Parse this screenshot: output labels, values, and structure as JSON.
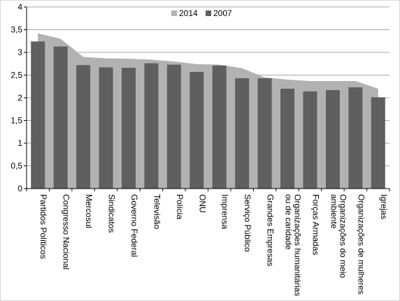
{
  "chart_data": {
    "type": "bar",
    "categories": [
      "Partidos Políticos",
      "Congresso Nacional",
      "Mercosul",
      "Sindicatos",
      "Governo Federal",
      "Televisão",
      "Polícia",
      "ONU",
      "Imprensa",
      "Serviço Público",
      "Grandes Empresas",
      "Organizações humanitárias ou de caridade",
      "Forças Armadas",
      "Organizações do meio ambiente",
      "Organizações de mulheres",
      "Igrejas"
    ],
    "category_lines": [
      [
        "Partidos Políticos"
      ],
      [
        "Congresso Nacional"
      ],
      [
        "Mercosul"
      ],
      [
        "Sindicatos"
      ],
      [
        "Governo Federal"
      ],
      [
        "Televisão"
      ],
      [
        "Polícia"
      ],
      [
        "ONU"
      ],
      [
        "Imprensa"
      ],
      [
        "Serviço Público"
      ],
      [
        "Grandes Empresas"
      ],
      [
        "Organizações humanitárias",
        "ou de caridade"
      ],
      [
        "Forças Armadas"
      ],
      [
        "Organizações do meio",
        "ambiente"
      ],
      [
        "Organizações de mulheres"
      ],
      [
        "Igrejas"
      ]
    ],
    "series": [
      {
        "name": "2014",
        "type": "area",
        "color": "#b2b2b2",
        "values": [
          3.42,
          3.3,
          2.9,
          2.87,
          2.86,
          2.84,
          2.8,
          2.74,
          2.73,
          2.65,
          2.45,
          2.4,
          2.37,
          2.37,
          2.37,
          2.2
        ]
      },
      {
        "name": "2007",
        "type": "bar",
        "color": "#5f5f5f",
        "values": [
          3.24,
          3.13,
          2.72,
          2.67,
          2.66,
          2.76,
          2.73,
          2.57,
          2.71,
          2.43,
          2.43,
          2.2,
          2.14,
          2.17,
          2.23,
          2.01
        ]
      }
    ],
    "ylim": [
      0,
      4
    ],
    "yticks": [
      "0",
      "0,5",
      "1",
      "1,5",
      "2",
      "2,5",
      "3",
      "3,5",
      "4"
    ],
    "ytick_values": [
      0,
      0.5,
      1,
      1.5,
      2,
      2.5,
      3,
      3.5,
      4
    ],
    "grid": true,
    "legend_position": "top-center",
    "title": "",
    "xlabel": "",
    "ylabel": ""
  }
}
